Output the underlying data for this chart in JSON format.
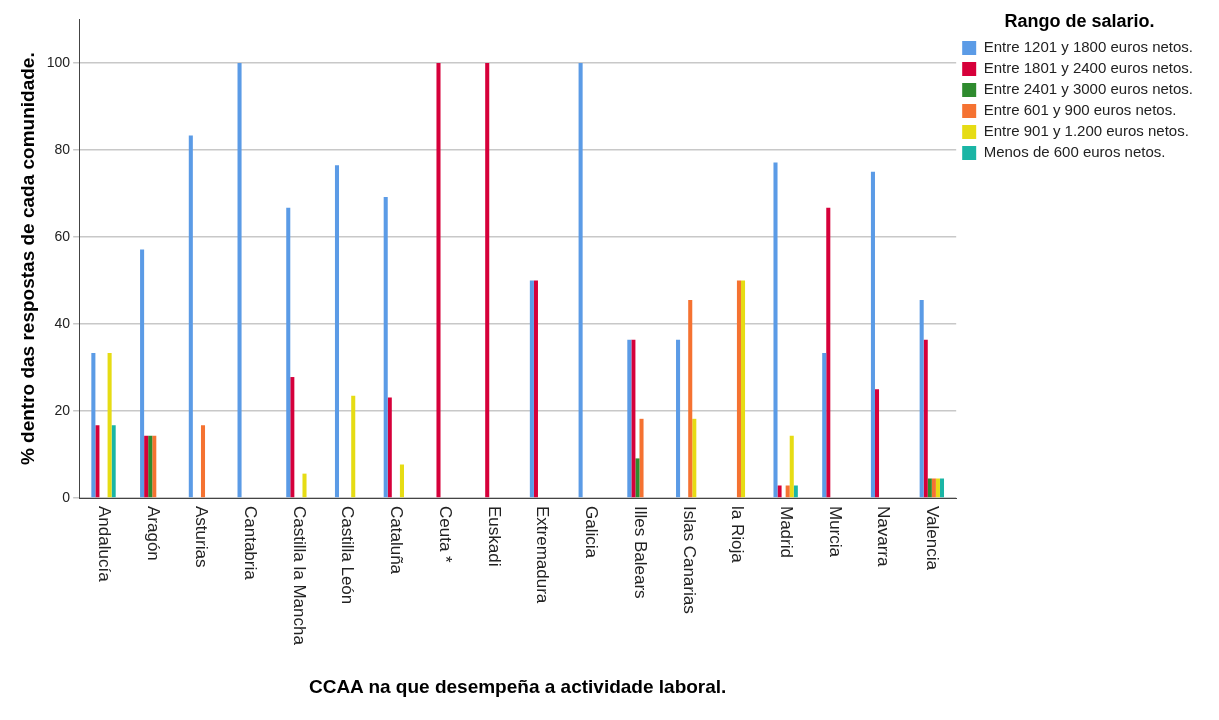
{
  "chart_data": {
    "type": "bar",
    "xlabel": "CCAA na que desempeña a actividade laboral.",
    "ylabel": "% dentro das respostas de cada comunidade.",
    "legend_title": "Rango de salario.",
    "categories": [
      "Andalucía",
      "Aragón",
      "Asturias",
      "Cantabria",
      "Castilla la Mancha",
      "Castilla León",
      "Cataluña",
      "Ceuta *",
      "Euskadi",
      "Extremadura",
      "Galicia",
      "Illes Balears",
      "Islas Canarias",
      "la Rioja",
      "Madrid",
      "Murcia",
      "Navarra",
      "Valencia"
    ],
    "series": [
      {
        "name": "Entre 1201 y 1800 euros netos.",
        "color": "#5b9be6",
        "values": [
          33.3,
          57.1,
          83.3,
          100,
          66.7,
          76.5,
          69.2,
          null,
          null,
          50,
          100,
          36.4,
          36.4,
          null,
          77.1,
          33.3,
          75,
          45.5
        ]
      },
      {
        "name": "Entre 1801 y 2400 euros netos.",
        "color": "#d6003a",
        "values": [
          16.7,
          14.3,
          null,
          null,
          27.8,
          null,
          23.1,
          100,
          100,
          50,
          null,
          36.4,
          null,
          null,
          2.9,
          66.7,
          25,
          36.4
        ]
      },
      {
        "name": "Entre 2401 y 3000 euros netos.",
        "color": "#2e8b2e",
        "values": [
          null,
          14.3,
          null,
          null,
          null,
          null,
          null,
          null,
          null,
          null,
          null,
          9.1,
          null,
          null,
          null,
          null,
          null,
          4.5
        ]
      },
      {
        "name": "Entre 601 y 900 euros netos.",
        "color": "#f57231",
        "values": [
          null,
          14.3,
          16.7,
          null,
          null,
          null,
          null,
          null,
          null,
          null,
          null,
          18.2,
          45.5,
          50,
          2.9,
          null,
          null,
          4.5
        ]
      },
      {
        "name": "Entre 901 y 1.200 euros netos.",
        "color": "#e6dc14",
        "values": [
          33.3,
          null,
          null,
          null,
          5.6,
          23.5,
          7.7,
          null,
          null,
          null,
          null,
          null,
          18.2,
          50,
          14.3,
          null,
          null,
          4.5
        ]
      },
      {
        "name": "Menos de 600 euros netos.",
        "color": "#1ab5a5",
        "values": [
          16.7,
          null,
          null,
          null,
          null,
          null,
          null,
          null,
          null,
          null,
          null,
          null,
          null,
          null,
          2.9,
          null,
          null,
          4.5
        ]
      }
    ],
    "ylim": [
      0,
      110
    ],
    "yticks": [
      0,
      20,
      40,
      60,
      80,
      100
    ],
    "grid": "y",
    "legend": "top right"
  }
}
